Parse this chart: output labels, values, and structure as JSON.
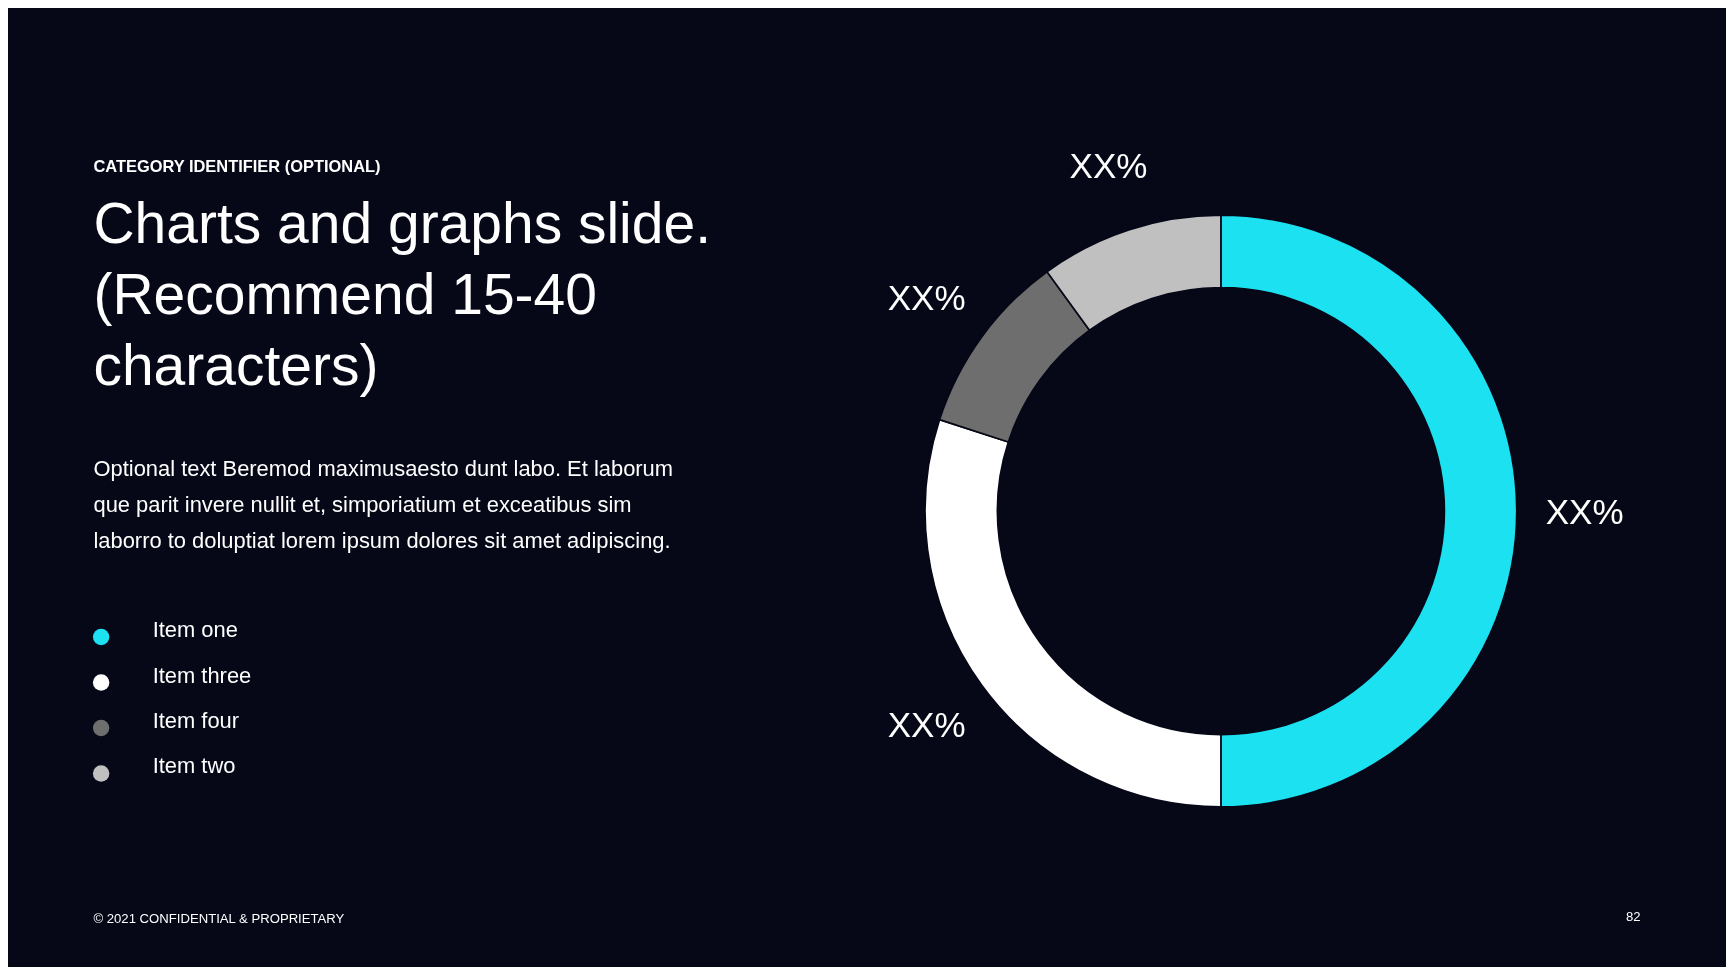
{
  "chart_data": {
    "type": "donut",
    "title": "Charts and graphs slide. (Recommend 15-40 characters)",
    "subtitle": "CATEGORY IDENTIFIER (OPTIONAL)",
    "categories": [
      "Item one",
      "Item three",
      "Item four",
      "Item two"
    ],
    "values": [
      50,
      30,
      10,
      10
    ],
    "colors": [
      "#1ce1f0",
      "#ffffff",
      "#6e6e6e",
      "#c0c0c0"
    ],
    "value_labels": [
      "XX%",
      "XX%",
      "XX%",
      "XX%"
    ],
    "legend": "left",
    "annotations": [
      "Optional text Beremod maximusaesto dunt labo. Et laborum que parit invere nullit et, simporiatium et exceatibus sim laborro to doluptiat lorem ipsum dolores sit amet adipiscing.",
      "© 2021 CONFIDENTIAL & PROPRIETARY",
      "82"
    ]
  }
}
